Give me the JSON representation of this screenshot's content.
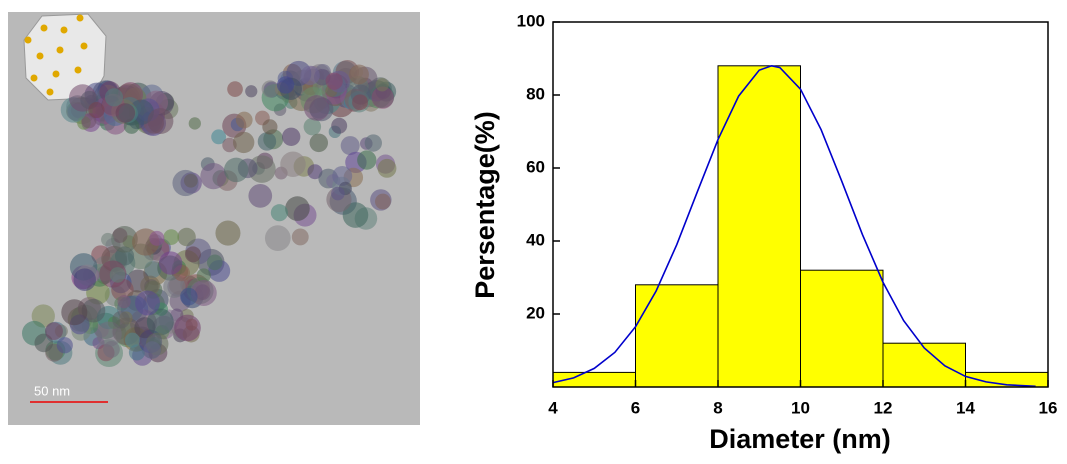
{
  "image": {
    "scale_bar": "50 nm"
  },
  "chart_data": {
    "type": "histogram",
    "x_label": "Diameter (nm)",
    "y_label": "Persentage(%)",
    "bins": [
      4,
      6,
      8,
      10,
      12,
      14,
      16
    ],
    "values": [
      4,
      28,
      88,
      32,
      12,
      4
    ],
    "color": "#ffff00",
    "xlim": [
      4,
      16
    ],
    "xticks": [
      4,
      6,
      8,
      10,
      12,
      14,
      16
    ],
    "ylim": [
      0,
      100
    ],
    "yticks": [
      20,
      40,
      60,
      80,
      100
    ],
    "fit": {
      "type": "line",
      "color": "#0000cc",
      "x": [
        4,
        4.5,
        5,
        5.5,
        6,
        6.5,
        7,
        7.5,
        8,
        8.5,
        9,
        9.3,
        9.5,
        10,
        10.5,
        11,
        11.5,
        12,
        12.5,
        13,
        13.5,
        14,
        14.5,
        15,
        15.7
      ],
      "values": [
        1.2,
        2.5,
        5.1,
        9.5,
        16.5,
        26.3,
        39.0,
        53.5,
        67.8,
        79.7,
        86.8,
        88,
        87.5,
        81.6,
        70.5,
        56.4,
        41.8,
        28.7,
        18.2,
        10.7,
        5.8,
        2.9,
        1.4,
        0.6,
        0.2
      ]
    }
  }
}
